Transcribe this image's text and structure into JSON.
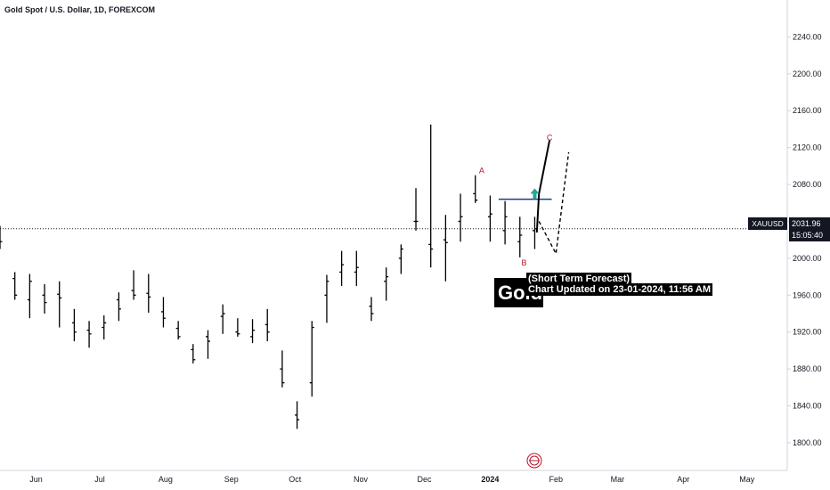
{
  "header": {
    "title": "Gold Spot / U.S. Dollar, 1D, FOREXCOM"
  },
  "price_label": {
    "symbol": "XAUUSD",
    "price": "2031.96",
    "countdown": "15:05:40"
  },
  "annotation": {
    "gold_text": "Gold",
    "line1": "(Short Term Forecast)",
    "line2": "Chart Updated on 23-01-2024, 11:56 AM"
  },
  "wave_labels": [
    {
      "label": "A",
      "date": "2023-12-28",
      "price": 2092
    },
    {
      "label": "B",
      "date": "2024-01-17",
      "price": 1992
    },
    {
      "label": "C",
      "date": "2024-01-29",
      "price": 2128
    }
  ],
  "colors": {
    "bar": "#000000",
    "resistance": "#1e3a8a",
    "arrow": "#26a69a",
    "wave_label": "#b2182b",
    "current_price_line": "#131722"
  },
  "chart_data": {
    "type": "ohlc",
    "title": "Gold Spot / U.S. Dollar, 1D, FOREXCOM",
    "x_axis": {
      "ticks": [
        "Jun",
        "Jul",
        "Aug",
        "Sep",
        "Oct",
        "Nov",
        "Dec",
        "2024",
        "Feb",
        "Mar",
        "Apr",
        "May"
      ],
      "tick_dates": [
        "2023-06-01",
        "2023-07-01",
        "2023-08-01",
        "2023-09-01",
        "2023-10-01",
        "2023-11-01",
        "2023-12-01",
        "2024-01-01",
        "2024-02-01",
        "2024-03-01",
        "2024-04-01",
        "2024-05-01"
      ],
      "range": [
        "2023-05-15",
        "2024-05-20"
      ]
    },
    "y_axis": {
      "ticks": [
        "2240.00",
        "2200.00",
        "2160.00",
        "2120.00",
        "2080.00",
        "2040.00",
        "2000.00",
        "1960.00",
        "1920.00",
        "1880.00",
        "1840.00",
        "1800.00"
      ],
      "range": [
        1770,
        2280
      ],
      "position": "right"
    },
    "current_price": 2031.96,
    "resistance_level": {
      "price": 2064,
      "from": "2024-01-05",
      "to": "2024-01-30"
    },
    "breakout_arrow": {
      "date": "2024-01-22",
      "price": 2070
    },
    "series": [
      {
        "type": "ohlc",
        "values": [
          [
            "2023-05-15",
            2019,
            2035,
            2010,
            2018
          ],
          [
            "2023-05-22",
            1978,
            1985,
            1955,
            1960
          ],
          [
            "2023-05-29",
            1955,
            1983,
            1935,
            1975
          ],
          [
            "2023-06-05",
            1960,
            1972,
            1940,
            1952
          ],
          [
            "2023-06-12",
            1961,
            1975,
            1925,
            1957
          ],
          [
            "2023-06-19",
            1930,
            1945,
            1910,
            1920
          ],
          [
            "2023-06-26",
            1922,
            1932,
            1903,
            1918
          ],
          [
            "2023-07-03",
            1925,
            1938,
            1912,
            1930
          ],
          [
            "2023-07-10",
            1955,
            1963,
            1932,
            1945
          ],
          [
            "2023-07-17",
            1965,
            1987,
            1955,
            1960
          ],
          [
            "2023-07-24",
            1962,
            1983,
            1941,
            1958
          ],
          [
            "2023-07-31",
            1942,
            1958,
            1925,
            1935
          ],
          [
            "2023-08-07",
            1924,
            1932,
            1912,
            1915
          ],
          [
            "2023-08-14",
            1901,
            1907,
            1886,
            1890
          ],
          [
            "2023-08-21",
            1915,
            1922,
            1891,
            1910
          ],
          [
            "2023-08-28",
            1937,
            1950,
            1918,
            1940
          ],
          [
            "2023-09-04",
            1920,
            1935,
            1915,
            1918
          ],
          [
            "2023-09-11",
            1915,
            1934,
            1908,
            1922
          ],
          [
            "2023-09-18",
            1928,
            1945,
            1910,
            1920
          ],
          [
            "2023-09-25",
            1880,
            1900,
            1860,
            1865
          ],
          [
            "2023-10-02",
            1830,
            1845,
            1815,
            1825
          ],
          [
            "2023-10-09",
            1865,
            1932,
            1850,
            1925
          ],
          [
            "2023-10-16",
            1960,
            1982,
            1930,
            1975
          ],
          [
            "2023-10-23",
            1985,
            2008,
            1970,
            1993
          ],
          [
            "2023-10-30",
            1985,
            2008,
            1970,
            1990
          ],
          [
            "2023-11-06",
            1948,
            1958,
            1932,
            1940
          ],
          [
            "2023-11-13",
            1975,
            1990,
            1954,
            1980
          ],
          [
            "2023-11-20",
            2000,
            2015,
            1983,
            2010
          ],
          [
            "2023-11-27",
            2040,
            2076,
            2030,
            2040
          ],
          [
            "2023-12-04",
            2015,
            2145,
            1990,
            2010
          ],
          [
            "2023-12-11",
            2020,
            2047,
            1975,
            2017
          ],
          [
            "2023-12-18",
            2040,
            2070,
            2018,
            2045
          ],
          [
            "2023-12-25",
            2070,
            2090,
            2060,
            2063
          ],
          [
            "2024-01-01",
            2045,
            2068,
            2018,
            2048
          ],
          [
            "2024-01-08",
            2030,
            2062,
            2015,
            2045
          ],
          [
            "2024-01-15",
            2018,
            2045,
            2001,
            2025
          ],
          [
            "2024-01-22",
            2030,
            2045,
            2010,
            2032
          ]
        ]
      }
    ],
    "forecast_paths": [
      {
        "name": "main",
        "style": "solid",
        "points": [
          [
            "2024-01-23",
            2028
          ],
          [
            "2024-01-24",
            2070
          ],
          [
            "2024-01-29",
            2128
          ]
        ]
      },
      {
        "name": "alternate",
        "style": "dashed",
        "points": [
          [
            "2024-01-24",
            2040
          ],
          [
            "2024-02-01",
            2005
          ],
          [
            "2024-02-07",
            2115
          ]
        ]
      }
    ]
  }
}
